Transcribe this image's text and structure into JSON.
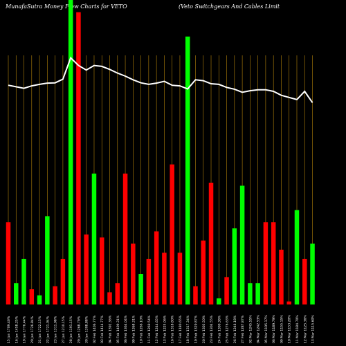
{
  "header": {
    "site": "MunafaSutra  Money Flow  Charts for VETO",
    "company": "(Veto  Switchgears And Cables Limit"
  },
  "colors": {
    "background": "#000000",
    "gridline": "#b8860b",
    "up_bar": "#00ff00",
    "down_bar": "#ff0000",
    "price_line": "#ffffff",
    "label": "#ffffff"
  },
  "chart_data": {
    "type": "bar",
    "title": "",
    "volume_scale": [
      0,
      100
    ],
    "price_scale": [
      0,
      100
    ],
    "bars": [
      {
        "date": "15 Jan 1709.40%",
        "dir": "down",
        "vol": 27,
        "price": 72
      },
      {
        "date": "16 Jan 1458.25%",
        "dir": "up",
        "vol": 7,
        "price": 71.5
      },
      {
        "date": "19 Jan 1776.44%",
        "dir": "up",
        "vol": 15,
        "price": 71
      },
      {
        "date": "20 Jan 1726.84%",
        "dir": "down",
        "vol": 5,
        "price": 71.8
      },
      {
        "date": "21 Jan 1722.15%",
        "dir": "up",
        "vol": 3,
        "price": 72.3
      },
      {
        "date": "22 Jan 1721.04%",
        "dir": "up",
        "vol": 29,
        "price": 72.7
      },
      {
        "date": "23 Jan 1311.98%",
        "dir": "down",
        "vol": 6,
        "price": 72.8
      },
      {
        "date": "27 Jan 1210.15%",
        "dir": "down",
        "vol": 15,
        "price": 74
      },
      {
        "date": "28 Jan 1191.15%",
        "dir": "up",
        "vol": 100,
        "price": 81
      },
      {
        "date": "29 Jan 1268.79%",
        "dir": "down",
        "vol": 96,
        "price": 78.5
      },
      {
        "date": "30 Jan 1308.88%",
        "dir": "down",
        "vol": 23,
        "price": 77
      },
      {
        "date": "02 Feb 1406.77%",
        "dir": "up",
        "vol": 43,
        "price": 78.5
      },
      {
        "date": "03 Feb 1414.77%",
        "dir": "down",
        "vol": 22,
        "price": 78.2
      },
      {
        "date": "04 Feb 1392.36%",
        "dir": "down",
        "vol": 4,
        "price": 77.2
      },
      {
        "date": "05 Feb 1409.31%",
        "dir": "down",
        "vol": 7,
        "price": 76
      },
      {
        "date": "06 Feb 1364.04%",
        "dir": "down",
        "vol": 43,
        "price": 75
      },
      {
        "date": "09 Feb 1368.31%",
        "dir": "down",
        "vol": 20,
        "price": 73.8
      },
      {
        "date": "10 Feb 1266.10%",
        "dir": "up",
        "vol": 10,
        "price": 72.8
      },
      {
        "date": "11 Feb 1269.54%",
        "dir": "down",
        "vol": 15,
        "price": 72.3
      },
      {
        "date": "12 Feb 1244.65%",
        "dir": "down",
        "vol": 24,
        "price": 72.7
      },
      {
        "date": "13 Feb 1225.06%",
        "dir": "down",
        "vol": 17,
        "price": 73.3
      },
      {
        "date": "16 Feb 1318.80%",
        "dir": "down",
        "vol": 46,
        "price": 72
      },
      {
        "date": "17 Feb 1180.65%",
        "dir": "down",
        "vol": 17,
        "price": 71.8
      },
      {
        "date": "18 Feb 1317.34%",
        "dir": "up",
        "vol": 88,
        "price": 70.8
      },
      {
        "date": "19 Feb 1329.87%",
        "dir": "down",
        "vol": 6,
        "price": 73.8
      },
      {
        "date": "20 Feb 1303.50%",
        "dir": "down",
        "vol": 21,
        "price": 73.5
      },
      {
        "date": "23 Feb 1304.55%",
        "dir": "down",
        "vol": 40,
        "price": 72.5
      },
      {
        "date": "24 Feb 1300.38%",
        "dir": "up",
        "vol": 2,
        "price": 72.3
      },
      {
        "date": "25 Feb 1276.63%",
        "dir": "down",
        "vol": 9,
        "price": 71.3
      },
      {
        "date": "26 Feb 1246.18%",
        "dir": "up",
        "vol": 25,
        "price": 70.7
      },
      {
        "date": "27 Feb 1287.87%",
        "dir": "up",
        "vol": 39,
        "price": 69.7
      },
      {
        "date": "02 Mar 1245.55%",
        "dir": "up",
        "vol": 7,
        "price": 70.2
      },
      {
        "date": "04 Mar 1242.53%",
        "dir": "up",
        "vol": 7,
        "price": 70.5
      },
      {
        "date": "05 Mar 1195.17%",
        "dir": "down",
        "vol": 27,
        "price": 70.5
      },
      {
        "date": "06 Mar 1189.79%",
        "dir": "down",
        "vol": 27,
        "price": 70
      },
      {
        "date": "09 Mar 1155.15%",
        "dir": "down",
        "vol": 18,
        "price": 68.7
      },
      {
        "date": "10 Mar 1153.20%",
        "dir": "down",
        "vol": 1,
        "price": 68
      },
      {
        "date": "11 Mar 1184.70%",
        "dir": "up",
        "vol": 31,
        "price": 67.3
      },
      {
        "date": "12 Mar 1125.36%",
        "dir": "down",
        "vol": 15,
        "price": 70
      },
      {
        "date": "13 Mar 1115.60%",
        "dir": "up",
        "vol": 20,
        "price": 66.3
      }
    ]
  }
}
